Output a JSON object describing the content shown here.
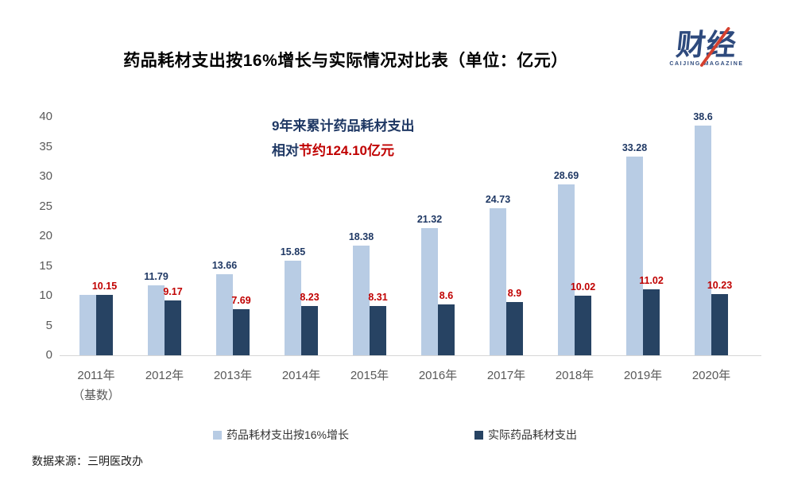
{
  "header": {
    "title": "药品耗材支出按16%增长与实际情况对比表（单位：亿元）"
  },
  "logo": {
    "text": "财经",
    "subtext": "CAIJING MAGAZINE",
    "color": "#2e4a7d",
    "slash_color": "#d5402e"
  },
  "annotation": {
    "line1": "9年来累计药品耗材支出",
    "line2_prefix": "相对",
    "line2_highlight": "节约124.10亿元"
  },
  "chart_data": {
    "type": "bar",
    "title": "药品耗材支出按16%增长与实际情况对比表（单位：亿元）",
    "categories": [
      {
        "label": "2011年",
        "sublabel": "（基数）"
      },
      {
        "label": "2012年",
        "sublabel": ""
      },
      {
        "label": "2013年",
        "sublabel": ""
      },
      {
        "label": "2014年",
        "sublabel": ""
      },
      {
        "label": "2015年",
        "sublabel": ""
      },
      {
        "label": "2016年",
        "sublabel": ""
      },
      {
        "label": "2017年",
        "sublabel": ""
      },
      {
        "label": "2018年",
        "sublabel": ""
      },
      {
        "label": "2019年",
        "sublabel": ""
      },
      {
        "label": "2020年",
        "sublabel": ""
      }
    ],
    "series": [
      {
        "name": "药品耗材支出按16%增长",
        "color": "#b8cce4",
        "label_color": "#1f3864",
        "values": [
          10.15,
          11.79,
          13.66,
          15.85,
          18.38,
          21.32,
          24.73,
          28.69,
          33.28,
          38.6
        ],
        "value_labels": [
          "",
          "11.79",
          "13.66",
          "15.85",
          "18.38",
          "21.32",
          "24.73",
          "28.69",
          "33.28",
          "38.6"
        ]
      },
      {
        "name": "实际药品耗材支出",
        "color": "#274363",
        "label_color": "#c00000",
        "values": [
          10.15,
          9.17,
          7.69,
          8.23,
          8.31,
          8.6,
          8.9,
          10.02,
          11.02,
          10.23
        ],
        "value_labels": [
          "10.15",
          "9.17",
          "7.69",
          "8.23",
          "8.31",
          "8.6",
          "8.9",
          "10.02",
          "11.02",
          "10.23"
        ]
      }
    ],
    "ylim": [
      0,
      40
    ],
    "yticks": [
      0,
      5,
      10,
      15,
      20,
      25,
      30,
      35,
      40
    ],
    "grid": false,
    "legend_position": "bottom",
    "axis_label_color": "#595959",
    "axis_line_color": "#d6d6d6"
  },
  "footer": {
    "source": "数据来源：三明医改办"
  }
}
